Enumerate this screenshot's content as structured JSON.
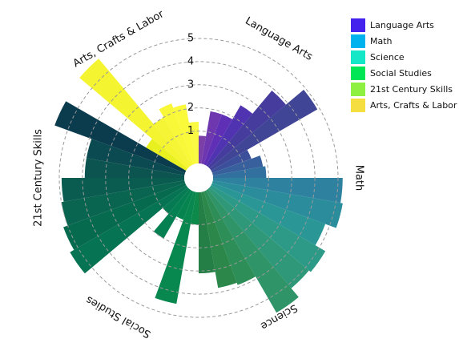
{
  "chart_data": {
    "type": "polar_bar",
    "categories": [
      "Language Arts",
      "Math",
      "Science",
      "Social Studies",
      "21st Century Skills",
      "Arts, Crafts & Labor"
    ],
    "series": [
      {
        "name": "Language Arts",
        "color": "#4422ee",
        "values": [
          0.8,
          1.9,
          1.9,
          2.6,
          3.9,
          4.9
        ],
        "colors": [
          "#7b3fa8",
          "#6e37b0",
          "#5f2fb6",
          "#4f33b0",
          "#453c9e",
          "#404596"
        ]
      },
      {
        "name": "Math",
        "color": "#00b2ee",
        "values": [
          1.4,
          1.8,
          1.9,
          5.2,
          5.3,
          4.8
        ],
        "colors": [
          "#3c4f9a",
          "#37609c",
          "#3270a0",
          "#2e82a0",
          "#2b8d9c",
          "#2a9695"
        ]
      },
      {
        "name": "Science",
        "color": "#14e6c8",
        "values": [
          5.3,
          5.2,
          5.7,
          3.9,
          3.8,
          3.1
        ],
        "colors": [
          "#2d9a88",
          "#2f9878",
          "#2f9468",
          "#2e8e58",
          "#2b874a",
          "#237f45"
        ]
      },
      {
        "name": "Social Studies",
        "color": "#00e654",
        "values": [
          1.0,
          4.5,
          0.9,
          2.0,
          1.0,
          5.4
        ],
        "colors": [
          "#0c8a4a",
          "#08874e",
          "#068450",
          "#058052",
          "#067a52",
          "#067352"
        ]
      },
      {
        "name": "21st Century Skills",
        "color": "#8ef040",
        "values": [
          5.2,
          5.0,
          4.9,
          3.9,
          3.9,
          5.6
        ],
        "colors": [
          "#066a4f",
          "#096450",
          "#0b5c50",
          "#0c5450",
          "#0b4a50",
          "#0a3c4e"
        ]
      },
      {
        "name": "Arts, Crafts & Labor",
        "color": "#f5df40",
        "values": [
          1.6,
          5.7,
          2.0,
          2.4,
          2.2,
          1.4
        ],
        "colors": [
          "#e8f020",
          "#f4f430",
          "#f5f535",
          "#f8f838",
          "#fafa3a",
          "#fafa42"
        ]
      }
    ],
    "ylim": [
      -0.4,
      5
    ],
    "yticks": [
      1,
      2,
      3,
      4,
      5
    ],
    "grid": true,
    "legend": "upper right"
  }
}
